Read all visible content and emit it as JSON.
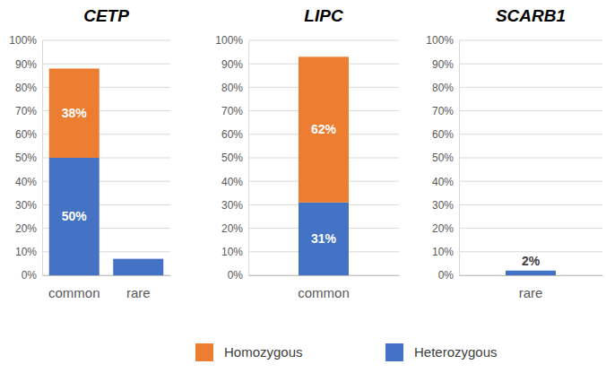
{
  "chart_data": [
    {
      "type": "bar",
      "title": "CETP",
      "categories": [
        "common",
        "rare"
      ],
      "stacked": true,
      "data_labels": true,
      "grid": true,
      "legend": "bottom",
      "ylim": [
        0,
        100
      ],
      "yticks": [
        {
          "value": 0,
          "label": "0%"
        },
        {
          "value": 10,
          "label": "10%"
        },
        {
          "value": 20,
          "label": "20%"
        },
        {
          "value": 30,
          "label": "30%"
        },
        {
          "value": 40,
          "label": "40%"
        },
        {
          "value": 50,
          "label": "50%"
        },
        {
          "value": 60,
          "label": "60%"
        },
        {
          "value": 70,
          "label": "70%"
        },
        {
          "value": 80,
          "label": "80%"
        },
        {
          "value": 90,
          "label": "90%"
        },
        {
          "value": 100,
          "label": "100%"
        }
      ],
      "series": [
        {
          "name": "Heterozygous",
          "color": "#4472c4",
          "values": [
            50,
            7
          ],
          "value_labels": [
            "50%",
            null
          ]
        },
        {
          "name": "Homozygous",
          "color": "#ed7d31",
          "values": [
            38,
            null
          ],
          "value_labels": [
            "38%",
            null
          ]
        }
      ]
    },
    {
      "type": "bar",
      "title": "LIPC",
      "categories": [
        "common"
      ],
      "stacked": true,
      "data_labels": true,
      "grid": true,
      "ylim": [
        0,
        100
      ],
      "yticks": [
        {
          "value": 0,
          "label": "0%"
        },
        {
          "value": 10,
          "label": "10%"
        },
        {
          "value": 20,
          "label": "20%"
        },
        {
          "value": 30,
          "label": "30%"
        },
        {
          "value": 40,
          "label": "40%"
        },
        {
          "value": 50,
          "label": "50%"
        },
        {
          "value": 60,
          "label": "60%"
        },
        {
          "value": 70,
          "label": "70%"
        },
        {
          "value": 80,
          "label": "80%"
        },
        {
          "value": 90,
          "label": "90%"
        },
        {
          "value": 100,
          "label": "100%"
        }
      ],
      "series": [
        {
          "color": "#4472c4",
          "values": [
            31
          ],
          "value_labels": [
            "31%"
          ]
        },
        {
          "color": "#ed7d31",
          "values": [
            62
          ],
          "value_labels": [
            "62%"
          ]
        }
      ]
    },
    {
      "type": "bar",
      "title": "SCARB1",
      "categories": [
        "rare"
      ],
      "stacked": true,
      "data_labels": true,
      "grid": true,
      "ylim": [
        0,
        100
      ],
      "yticks": [
        {
          "value": 0,
          "label": "0%"
        },
        {
          "value": 10,
          "label": "10%"
        },
        {
          "value": 20,
          "label": "20%"
        },
        {
          "value": 30,
          "label": "30%"
        },
        {
          "value": 40,
          "label": "40%"
        },
        {
          "value": 50,
          "label": "50%"
        },
        {
          "value": 60,
          "label": "60%"
        },
        {
          "value": 70,
          "label": "70%"
        },
        {
          "value": 80,
          "label": "80%"
        },
        {
          "value": 90,
          "label": "90%"
        },
        {
          "value": 100,
          "label": "100%"
        }
      ],
      "series": [
        {
          "color": "#4472c4",
          "values": [
            2
          ],
          "value_labels": [
            "2%"
          ]
        }
      ]
    }
  ]
}
